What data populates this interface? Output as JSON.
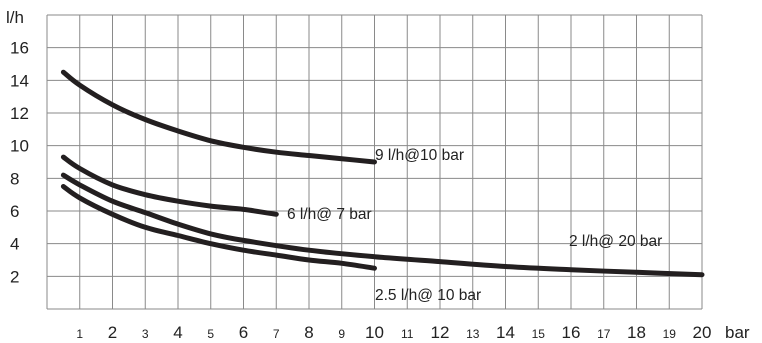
{
  "chart_data": {
    "type": "line",
    "grid": true,
    "xlim": [
      0,
      20
    ],
    "ylim": [
      0,
      18
    ],
    "y_unit": "l/h",
    "x_unit": "bar",
    "yticks": [
      2,
      4,
      6,
      8,
      10,
      12,
      14,
      16
    ],
    "xticks": [
      1,
      2,
      3,
      4,
      5,
      6,
      7,
      8,
      9,
      10,
      11,
      12,
      13,
      14,
      15,
      16,
      17,
      18,
      19,
      20
    ],
    "series": [
      {
        "name": "9 l/h@10 bar",
        "points": [
          [
            0.5,
            14.5
          ],
          [
            1,
            13.7
          ],
          [
            2,
            12.5
          ],
          [
            3,
            11.6
          ],
          [
            4,
            10.9
          ],
          [
            5,
            10.3
          ],
          [
            6,
            9.9
          ],
          [
            7,
            9.6
          ],
          [
            8,
            9.4
          ],
          [
            9,
            9.2
          ],
          [
            10,
            9.0
          ]
        ]
      },
      {
        "name": "6 l/h@ 7 bar",
        "points": [
          [
            0.5,
            9.3
          ],
          [
            1,
            8.6
          ],
          [
            2,
            7.6
          ],
          [
            3,
            7.0
          ],
          [
            4,
            6.6
          ],
          [
            5,
            6.3
          ],
          [
            6,
            6.1
          ],
          [
            7,
            5.8
          ]
        ]
      },
      {
        "name": "2 l/h@ 20 bar",
        "points": [
          [
            0.5,
            8.2
          ],
          [
            1,
            7.6
          ],
          [
            2,
            6.6
          ],
          [
            3,
            5.9
          ],
          [
            4,
            5.2
          ],
          [
            5,
            4.6
          ],
          [
            6,
            4.2
          ],
          [
            8,
            3.6
          ],
          [
            10,
            3.2
          ],
          [
            12,
            2.9
          ],
          [
            14,
            2.6
          ],
          [
            16,
            2.4
          ],
          [
            18,
            2.25
          ],
          [
            20,
            2.1
          ]
        ]
      },
      {
        "name": "2.5 l/h@ 10 bar",
        "points": [
          [
            0.5,
            7.5
          ],
          [
            1,
            6.8
          ],
          [
            2,
            5.8
          ],
          [
            3,
            5.0
          ],
          [
            4,
            4.5
          ],
          [
            5,
            4.0
          ],
          [
            6,
            3.6
          ],
          [
            7,
            3.3
          ],
          [
            8,
            3.0
          ],
          [
            9,
            2.8
          ],
          [
            10,
            2.5
          ]
        ]
      }
    ]
  }
}
